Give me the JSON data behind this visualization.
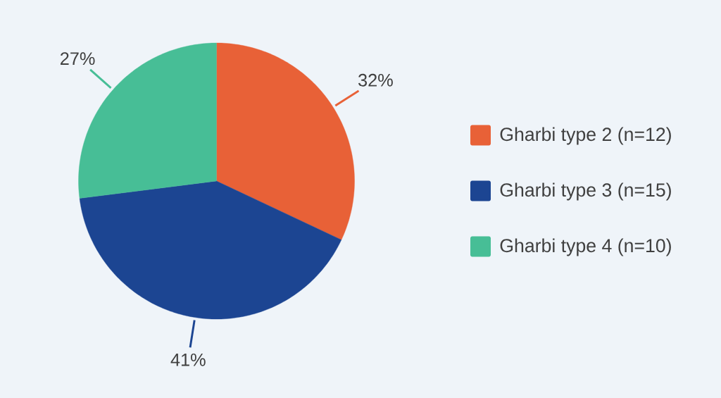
{
  "chart_data": {
    "type": "pie",
    "categories": [
      "Gharbi type 2 (n=12)",
      "Gharbi type 3 (n=15)",
      "Gharbi type 4 (n=10)"
    ],
    "values": [
      32,
      41,
      27
    ],
    "colors": [
      "#e86137",
      "#1c4592",
      "#47be96"
    ],
    "value_labels": [
      "32%",
      "41%",
      "27%"
    ],
    "legend": "right"
  }
}
